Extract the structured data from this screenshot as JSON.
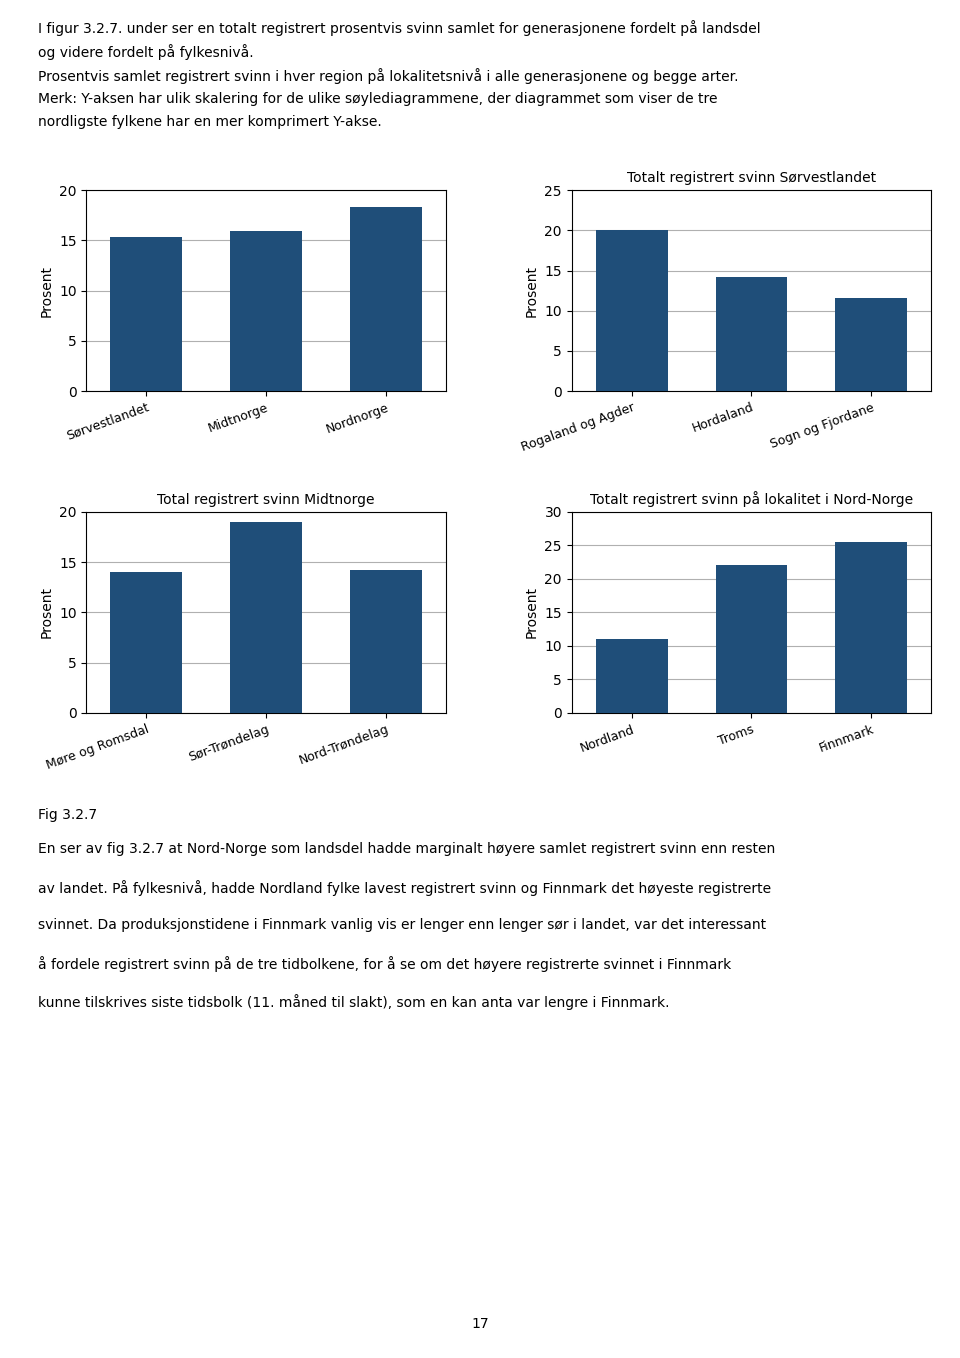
{
  "chart_data": [
    {
      "type": "bar",
      "categories": [
        "Sørvestlandet",
        "Midtnorge",
        "Nordnorge"
      ],
      "values": [
        15.3,
        15.9,
        18.3
      ],
      "color": "#1f4e79",
      "ylabel": "Prosent",
      "ylim": [
        0,
        20
      ],
      "yticks": [
        0,
        5,
        10,
        15,
        20
      ],
      "grid": true
    },
    {
      "type": "bar",
      "title": "Totalt registrert svinn Sørvestlandet",
      "categories": [
        "Rogaland og Agder",
        "Hordaland",
        "Sogn og Fjordane"
      ],
      "values": [
        20.1,
        14.2,
        11.6
      ],
      "color": "#1f4e79",
      "ylabel": "Prosent",
      "ylim": [
        0,
        25
      ],
      "yticks": [
        0,
        5,
        10,
        15,
        20,
        25
      ],
      "grid": true
    },
    {
      "type": "bar",
      "title": "Total registrert svinn Midtnorge",
      "categories": [
        "Møre og Romsdal",
        "Sør-Trøndelag",
        "Nord-Trøndelag"
      ],
      "values": [
        14.0,
        19.0,
        14.2
      ],
      "color": "#1f4e79",
      "ylabel": "Prosent",
      "ylim": [
        0,
        20
      ],
      "yticks": [
        0,
        5,
        10,
        15,
        20
      ],
      "grid": true
    },
    {
      "type": "bar",
      "title": "Totalt registrert svinn på lokalitet i Nord-Norge",
      "categories": [
        "Nordland",
        "Troms",
        "Finnmark"
      ],
      "values": [
        11.0,
        22.0,
        25.5
      ],
      "color": "#1f4e79",
      "ylabel": "Prosent",
      "ylim": [
        0,
        30
      ],
      "yticks": [
        0,
        5,
        10,
        15,
        20,
        25,
        30
      ],
      "grid": true
    }
  ],
  "header": [
    "I figur 3.2.7. under ser en totalt registrert prosentvis svinn samlet for generasjonene fordelt på landsdel",
    "og videre fordelt på fylkesnivå.",
    "Prosentvis samlet registrert svinn i hver region på lokalitetsnivå i alle generasjonene og begge arter.",
    "Merk: Y-aksen har ulik skalering for de ulike søylediagrammene, der diagrammet som viser de tre",
    "nordligste fylkene har en mer komprimert Y-akse."
  ],
  "fig_label": "Fig 3.2.7",
  "footer": [
    "En ser av fig 3.2.7 at Nord-Norge som landsdel hadde marginalt høyere samlet registrert svinn enn resten",
    "av landet. På fylkesnivå, hadde Nordland fylke lavest registrert svinn og Finnmark det høyeste registrerte",
    "svinnet. Da produksjonstidene i Finnmark vanlig vis er lenger enn lenger sør i landet, var det interessant",
    "å fordele registrert svinn på de tre tidbolkene, for å se om det høyere registrerte svinnet i Finnmark",
    "kunne tilskrives siste tidsbolk (11. måned til slakt), som en kan anta var lengre i Finnmark."
  ],
  "page_number": "17"
}
